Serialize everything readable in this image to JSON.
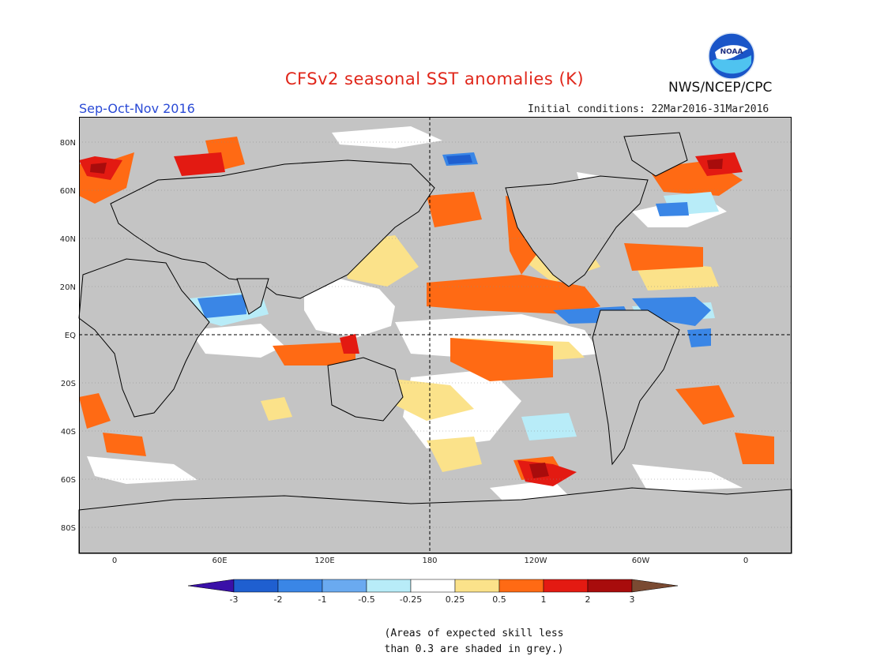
{
  "title": "CFSv2 seasonal SST anomalies (K)",
  "season": "Sep-Oct-Nov 2016",
  "initial_conditions": "Initial conditions: 22Mar2016-31Mar2016",
  "agency": "NWS/NCEP/CPC",
  "logo_text": "NOAA",
  "lat_labels": [
    "80N",
    "60N",
    "40N",
    "20N",
    "EQ",
    "20S",
    "40S",
    "60S",
    "80S"
  ],
  "lon_labels": [
    "0",
    "60E",
    "120E",
    "180",
    "120W",
    "60W",
    "0"
  ],
  "colorbar": {
    "labels": [
      "-3",
      "-2",
      "-1",
      "-0.5",
      "-0.25",
      "0.25",
      "0.5",
      "1",
      "2",
      "3"
    ],
    "colors": [
      "#3a10a8",
      "#1f5fd0",
      "#3a86e6",
      "#6aaaf0",
      "#b8ecf8",
      "#ffffff",
      "#fbe28a",
      "#ff6a14",
      "#e31a12",
      "#a80c0c",
      "#7a4a32"
    ]
  },
  "note_lines": [
    "(Areas of expected skill less",
    "than 0.3 are shaded in grey.)"
  ],
  "colors": {
    "land_grey": "#c4c4c4",
    "warm": "#ff6a14",
    "cold": "#3a86e6"
  }
}
